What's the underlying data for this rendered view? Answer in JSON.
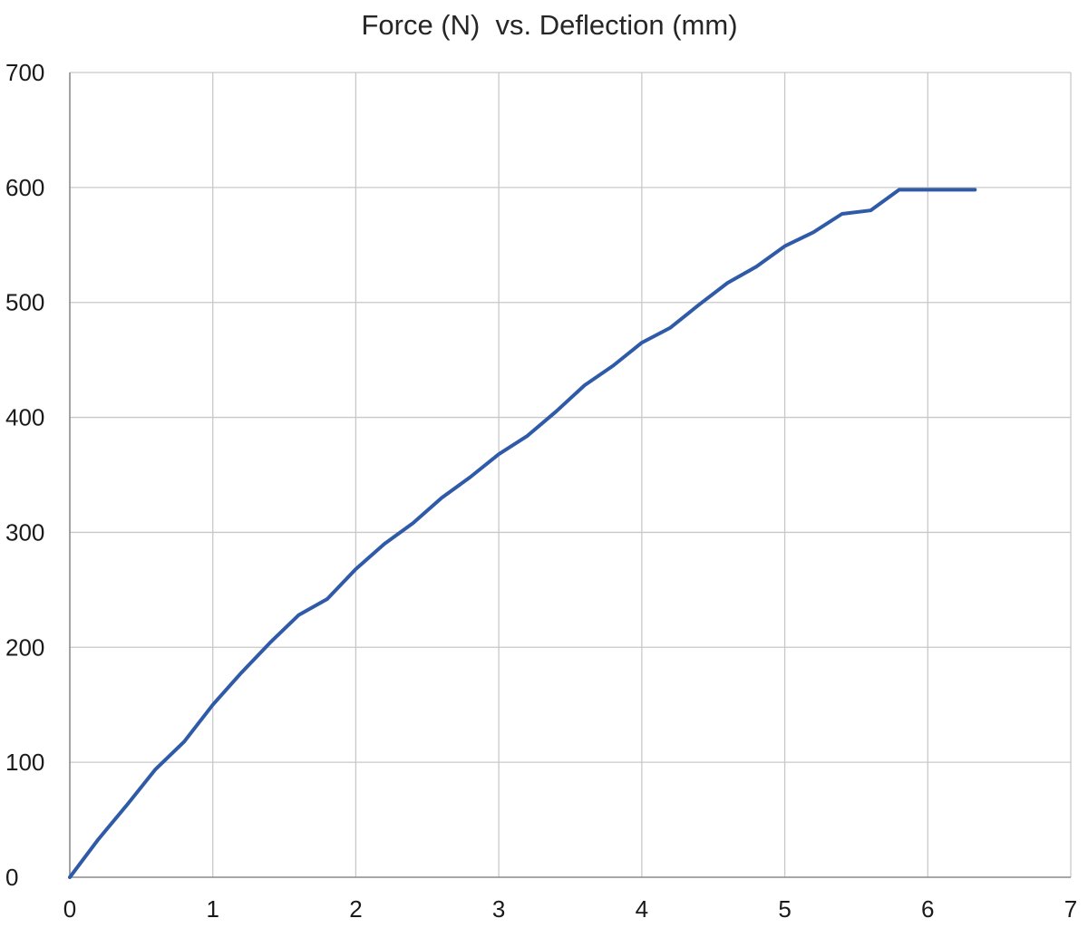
{
  "chart_data": {
    "type": "line",
    "title": "Force (N)  vs. Deflection (mm)",
    "xlabel": "",
    "ylabel": "",
    "xlim": [
      0,
      7
    ],
    "ylim": [
      0,
      700
    ],
    "x_ticks": [
      "0",
      "1",
      "2",
      "3",
      "4",
      "5",
      "6",
      "7"
    ],
    "y_ticks": [
      "0",
      "100",
      "200",
      "300",
      "400",
      "500",
      "600",
      "700"
    ],
    "grid": true,
    "legend": "none",
    "series": [
      {
        "color": "#2f5aa8",
        "x": [
          0,
          0.2,
          0.4,
          0.6,
          0.8,
          1.0,
          1.2,
          1.4,
          1.6,
          1.8,
          2.0,
          2.2,
          2.4,
          2.6,
          2.8,
          3.0,
          3.2,
          3.4,
          3.6,
          3.8,
          4.0,
          4.2,
          4.4,
          4.6,
          4.8,
          5.0,
          5.2,
          5.4,
          5.6,
          5.8,
          6.0,
          6.2,
          6.33
        ],
        "y": [
          0,
          33,
          63,
          94,
          118,
          150,
          178,
          204,
          228,
          242,
          268,
          290,
          308,
          330,
          348,
          368,
          384,
          405,
          428,
          445,
          465,
          478,
          498,
          517,
          531,
          549,
          561,
          577,
          580,
          598,
          598,
          598,
          598
        ]
      }
    ]
  }
}
